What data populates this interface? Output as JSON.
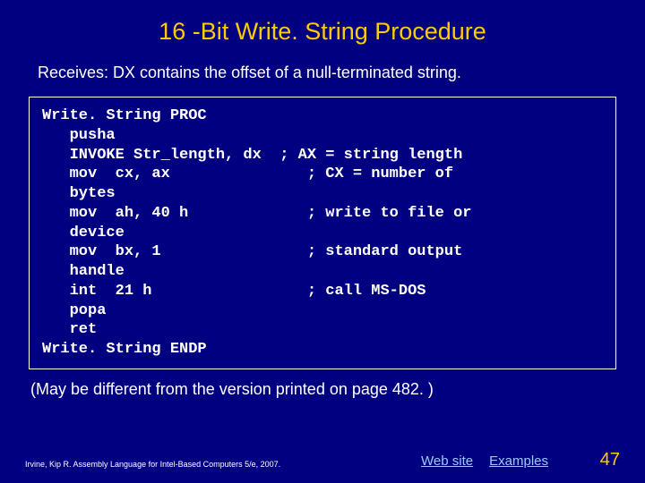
{
  "title": "16 -Bit Write. String Procedure",
  "subtitle": "Receives: DX contains the offset of a null-terminated string.",
  "code": "Write. String PROC\n   pusha\n   INVOKE Str_length, dx  ; AX = string length\n   mov  cx, ax               ; CX = number of\n   bytes\n   mov  ah, 40 h             ; write to file or\n   device\n   mov  bx, 1                ; standard output\n   handle\n   int  21 h                 ; call MS-DOS\n   popa\n   ret\nWrite. String ENDP",
  "note": "(May be different from the version printed on page 482. )",
  "credit": "Irvine, Kip R. Assembly Language for Intel-Based Computers 5/e, 2007.",
  "link_web": "Web site",
  "link_examples": "Examples",
  "page_number": "47",
  "colors": {
    "background": "#000080",
    "title": "#ffcc00",
    "body_text": "#ffffff",
    "link": "#99ccff",
    "border": "#ffffff",
    "pagenum": "#ffcc00"
  }
}
